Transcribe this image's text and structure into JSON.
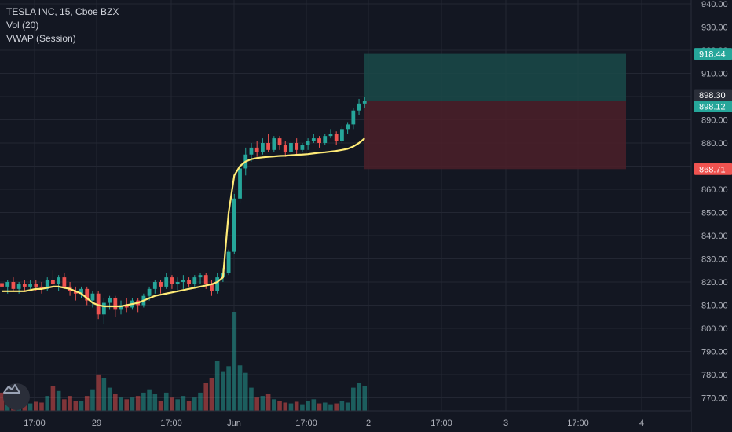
{
  "legend": {
    "symbol": "TESLA INC, 15, Cboe BZX",
    "volume": "Vol (20)",
    "vwap": "VWAP (Session)"
  },
  "colors": {
    "background": "#131722",
    "grid": "#232733",
    "up": "#26a69a",
    "down": "#ef5350",
    "vwap": "#ffeb77",
    "text": "#b2b5be",
    "target_zone": "#1a4a49",
    "stop_zone": "#4c2029"
  },
  "chart_data": {
    "type": "candlestick",
    "title": "TESLA INC, 15, Cboe BZX",
    "yaxis": {
      "ticks": [
        "940.00",
        "930.00",
        "920.00",
        "910.00",
        "900.00",
        "890.00",
        "880.00",
        "870.00",
        "860.00",
        "850.00",
        "840.00",
        "830.00",
        "820.00",
        "810.00",
        "800.00",
        "790.00",
        "780.00",
        "770.00"
      ],
      "ylim": [
        766,
        940
      ]
    },
    "xaxis": {
      "ticks": [
        "17:00",
        "29",
        "17:00",
        "Jun",
        "17:00",
        "2",
        "17:00",
        "3",
        "17:00",
        "4"
      ]
    },
    "price_labels": [
      {
        "text": "918.44",
        "value": 918.44,
        "color": "#26a69a"
      },
      {
        "text": "898.30",
        "value": 898.3,
        "color": "#2a2e39"
      },
      {
        "text": "898.12",
        "value": 898.12,
        "color": "#26a69a"
      },
      {
        "text": "868.71",
        "value": 868.71,
        "color": "#ef5350"
      }
    ],
    "position": {
      "entry": 898.12,
      "target": 918.44,
      "stop": 868.71
    },
    "candles": [
      [
        819.5,
        821,
        816,
        818
      ],
      [
        818,
        821,
        815,
        820
      ],
      [
        820,
        822,
        816,
        817
      ],
      [
        817,
        820,
        815,
        819
      ],
      [
        819,
        821,
        816,
        818
      ],
      [
        818,
        821,
        817,
        819
      ],
      [
        819,
        821,
        816,
        818
      ],
      [
        818,
        820,
        815,
        817
      ],
      [
        817,
        822,
        816,
        821
      ],
      [
        821,
        825,
        818,
        819
      ],
      [
        819,
        823,
        816,
        822
      ],
      [
        822,
        824,
        817,
        818
      ],
      [
        818,
        820,
        814,
        816
      ],
      [
        816,
        818,
        812,
        815
      ],
      [
        815,
        818,
        813,
        817
      ],
      [
        817,
        818,
        810,
        812
      ],
      [
        812,
        816,
        809,
        815
      ],
      [
        815,
        816,
        804,
        806
      ],
      [
        806,
        813,
        802,
        811
      ],
      [
        811,
        814,
        808,
        813
      ],
      [
        813,
        814,
        805,
        808
      ],
      [
        808,
        812,
        806,
        810
      ],
      [
        810,
        813,
        807,
        809
      ],
      [
        809,
        813,
        808,
        812
      ],
      [
        812,
        813,
        807,
        810
      ],
      [
        810,
        815,
        809,
        814
      ],
      [
        814,
        818,
        812,
        817
      ],
      [
        817,
        821,
        815,
        820
      ],
      [
        820,
        821,
        815,
        818
      ],
      [
        818,
        824,
        817,
        822
      ],
      [
        822,
        823,
        817,
        819
      ],
      [
        819,
        822,
        816,
        820
      ],
      [
        820,
        823,
        817,
        821
      ],
      [
        821,
        822,
        818,
        819
      ],
      [
        819,
        823,
        818,
        822
      ],
      [
        822,
        824,
        819,
        823
      ],
      [
        823,
        824,
        817,
        819
      ],
      [
        819,
        821,
        814,
        816
      ],
      [
        816,
        824,
        815,
        822
      ],
      [
        822,
        826,
        820,
        824
      ],
      [
        824,
        834,
        823,
        833
      ],
      [
        833,
        858,
        832,
        856
      ],
      [
        856,
        872,
        854,
        869
      ],
      [
        869,
        878,
        866,
        875
      ],
      [
        875,
        880,
        872,
        878
      ],
      [
        878,
        881,
        874,
        876
      ],
      [
        876,
        882,
        875,
        880
      ],
      [
        880,
        884,
        876,
        877
      ],
      [
        877,
        883,
        876,
        882
      ],
      [
        882,
        883,
        877,
        879
      ],
      [
        879,
        881,
        874,
        876
      ],
      [
        876,
        881,
        875,
        880
      ],
      [
        880,
        882,
        875,
        877
      ],
      [
        877,
        880,
        876,
        879
      ],
      [
        879,
        882,
        877,
        881
      ],
      [
        881,
        884,
        880,
        882
      ],
      [
        882,
        883,
        878,
        880
      ],
      [
        880,
        884,
        879,
        883
      ],
      [
        883,
        886,
        882,
        884
      ],
      [
        884,
        885,
        879,
        881
      ],
      [
        881,
        887,
        880,
        886
      ],
      [
        886,
        889,
        884,
        888
      ],
      [
        888,
        895,
        886,
        894
      ],
      [
        894,
        899,
        892,
        897
      ],
      [
        897,
        900,
        895,
        898.1
      ]
    ],
    "volume": [
      22,
      14,
      10,
      16,
      12,
      9,
      11,
      10,
      18,
      30,
      24,
      14,
      18,
      12,
      12,
      18,
      26,
      44,
      40,
      28,
      20,
      16,
      14,
      16,
      18,
      22,
      26,
      20,
      12,
      22,
      16,
      14,
      18,
      12,
      16,
      22,
      34,
      40,
      60,
      48,
      54,
      120,
      55,
      46,
      28,
      16,
      18,
      20,
      14,
      12,
      10,
      9,
      11,
      8,
      12,
      14,
      9,
      10,
      8,
      9,
      12,
      10,
      28,
      34,
      30
    ],
    "vwap": [
      816,
      816,
      816,
      816,
      816,
      816.5,
      817,
      817,
      817.5,
      818,
      818,
      817.5,
      817,
      816,
      815,
      813,
      811,
      810,
      809.5,
      809.5,
      809.5,
      809.5,
      810,
      810.5,
      811,
      812,
      813,
      814,
      814.5,
      815,
      815.5,
      816,
      816.5,
      817,
      817.5,
      818,
      818.5,
      819,
      820,
      822,
      850,
      866,
      870,
      872,
      873,
      873.5,
      873.8,
      874,
      874.2,
      874.4,
      874.5,
      874.7,
      874.9,
      875,
      875.2,
      875.5,
      875.8,
      876,
      876.3,
      876.6,
      877,
      877.5,
      878.5,
      880,
      882
    ]
  }
}
